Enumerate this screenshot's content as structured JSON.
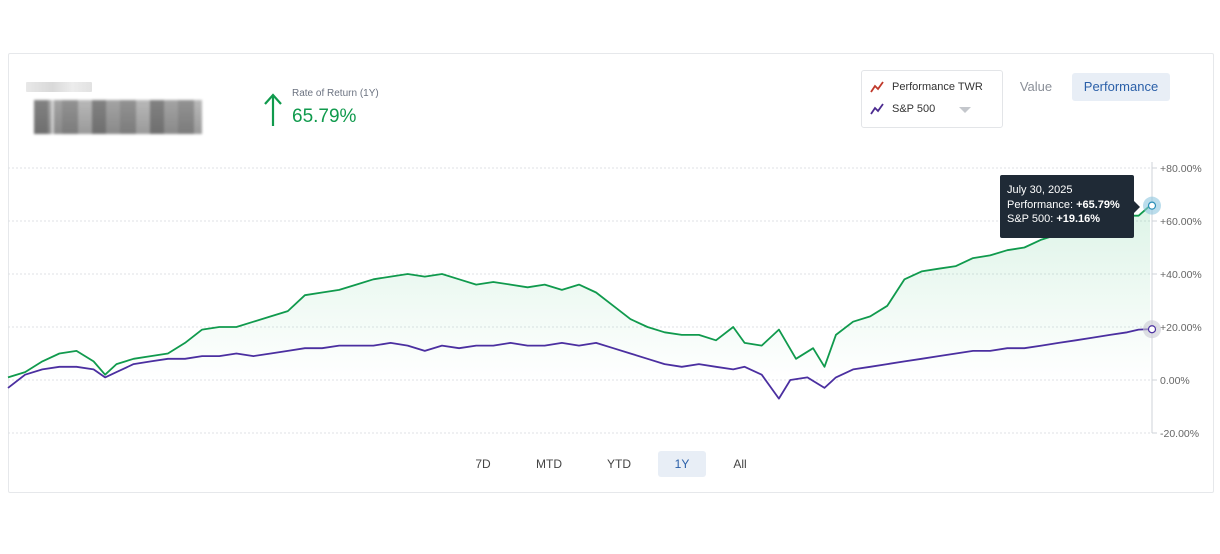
{
  "header": {
    "rate_of_return_label": "Rate of Return (1Y)",
    "rate_of_return_value": "65.79%"
  },
  "legend": {
    "items": [
      {
        "label": "Performance TWR",
        "icon": "line-trend-icon",
        "color": "#c0392b"
      },
      {
        "label": "S&P 500",
        "icon": "line-trend-icon",
        "color": "#4b2a8f"
      }
    ]
  },
  "view_toggle": {
    "value_label": "Value",
    "performance_label": "Performance",
    "selected": "Performance"
  },
  "colors": {
    "performance_line": "#109a4d",
    "sp500_line": "#4b2fa0",
    "accent_blue": "#2a5fa8",
    "positive_green": "#109a4d"
  },
  "tooltip": {
    "date": "July 30, 2025",
    "performance_label": "Performance:",
    "performance_value": "+65.79%",
    "sp500_label": "S&P 500:",
    "sp500_value": "+19.16%"
  },
  "ranges": {
    "items": [
      "7D",
      "MTD",
      "YTD",
      "1Y",
      "All"
    ],
    "selected": "1Y"
  },
  "chart_data": {
    "type": "line",
    "y_tick_labels": [
      "+80.00%",
      "+60.00%",
      "+40.00%",
      "+20.00%",
      "0.00%",
      "-20.00%"
    ],
    "ylim": [
      -20,
      80
    ],
    "grid": true,
    "series": [
      {
        "name": "Performance TWR",
        "points": [
          [
            0,
            1
          ],
          [
            3,
            3
          ],
          [
            6,
            7
          ],
          [
            9,
            10
          ],
          [
            12,
            11
          ],
          [
            15,
            7
          ],
          [
            17,
            2
          ],
          [
            19,
            6
          ],
          [
            22,
            8
          ],
          [
            25,
            9
          ],
          [
            28,
            10
          ],
          [
            31,
            14
          ],
          [
            34,
            19
          ],
          [
            37,
            20
          ],
          [
            40,
            20
          ],
          [
            43,
            22
          ],
          [
            46,
            24
          ],
          [
            49,
            26
          ],
          [
            52,
            32
          ],
          [
            55,
            33
          ],
          [
            58,
            34
          ],
          [
            61,
            36
          ],
          [
            64,
            38
          ],
          [
            67,
            39
          ],
          [
            70,
            40
          ],
          [
            73,
            39
          ],
          [
            76,
            40
          ],
          [
            79,
            38
          ],
          [
            82,
            36
          ],
          [
            85,
            37
          ],
          [
            88,
            36
          ],
          [
            91,
            35
          ],
          [
            94,
            36
          ],
          [
            97,
            34
          ],
          [
            100,
            36
          ],
          [
            103,
            33
          ],
          [
            106,
            28
          ],
          [
            109,
            23
          ],
          [
            112,
            20
          ],
          [
            115,
            18
          ],
          [
            118,
            17
          ],
          [
            121,
            17
          ],
          [
            124,
            15
          ],
          [
            127,
            20
          ],
          [
            129,
            14
          ],
          [
            132,
            13
          ],
          [
            135,
            19
          ],
          [
            138,
            8
          ],
          [
            141,
            12
          ],
          [
            143,
            5
          ],
          [
            145,
            17
          ],
          [
            148,
            22
          ],
          [
            151,
            24
          ],
          [
            154,
            28
          ],
          [
            157,
            38
          ],
          [
            160,
            41
          ],
          [
            163,
            42
          ],
          [
            166,
            43
          ],
          [
            169,
            46
          ],
          [
            172,
            47
          ],
          [
            175,
            49
          ],
          [
            178,
            50
          ],
          [
            181,
            53
          ],
          [
            184,
            55
          ],
          [
            187,
            56
          ],
          [
            190,
            58
          ],
          [
            193,
            60
          ],
          [
            195,
            62
          ],
          [
            198,
            62
          ],
          [
            200,
            65.79
          ]
        ]
      },
      {
        "name": "S&P 500",
        "points": [
          [
            0,
            -3
          ],
          [
            3,
            2
          ],
          [
            6,
            4
          ],
          [
            9,
            5
          ],
          [
            12,
            5
          ],
          [
            15,
            4
          ],
          [
            17,
            1
          ],
          [
            19,
            3
          ],
          [
            22,
            6
          ],
          [
            25,
            7
          ],
          [
            28,
            8
          ],
          [
            31,
            8
          ],
          [
            34,
            9
          ],
          [
            37,
            9
          ],
          [
            40,
            10
          ],
          [
            43,
            9
          ],
          [
            46,
            10
          ],
          [
            49,
            11
          ],
          [
            52,
            12
          ],
          [
            55,
            12
          ],
          [
            58,
            13
          ],
          [
            61,
            13
          ],
          [
            64,
            13
          ],
          [
            67,
            14
          ],
          [
            70,
            13
          ],
          [
            73,
            11
          ],
          [
            76,
            13
          ],
          [
            79,
            12
          ],
          [
            82,
            13
          ],
          [
            85,
            13
          ],
          [
            88,
            14
          ],
          [
            91,
            13
          ],
          [
            94,
            13
          ],
          [
            97,
            14
          ],
          [
            100,
            13
          ],
          [
            103,
            14
          ],
          [
            106,
            12
          ],
          [
            109,
            10
          ],
          [
            112,
            8
          ],
          [
            115,
            6
          ],
          [
            118,
            5
          ],
          [
            121,
            6
          ],
          [
            124,
            5
          ],
          [
            127,
            4
          ],
          [
            129,
            5
          ],
          [
            132,
            2
          ],
          [
            135,
            -7
          ],
          [
            137,
            0
          ],
          [
            140,
            1
          ],
          [
            143,
            -3
          ],
          [
            145,
            1
          ],
          [
            148,
            4
          ],
          [
            151,
            5
          ],
          [
            154,
            6
          ],
          [
            157,
            7
          ],
          [
            160,
            8
          ],
          [
            163,
            9
          ],
          [
            166,
            10
          ],
          [
            169,
            11
          ],
          [
            172,
            11
          ],
          [
            175,
            12
          ],
          [
            178,
            12
          ],
          [
            181,
            13
          ],
          [
            184,
            14
          ],
          [
            187,
            15
          ],
          [
            190,
            16
          ],
          [
            193,
            17
          ],
          [
            196,
            18
          ],
          [
            198,
            19
          ],
          [
            200,
            19.16
          ]
        ]
      }
    ]
  }
}
